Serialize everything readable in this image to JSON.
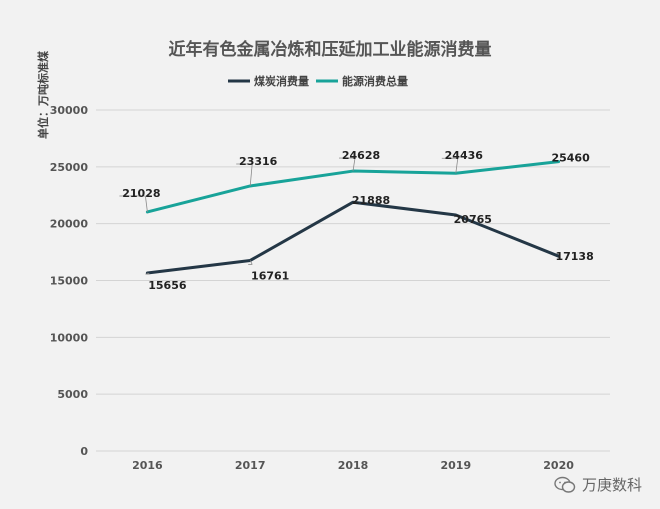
{
  "chart_data": {
    "type": "line",
    "title": "近年有色金属冶炼和压延加工业能源消费量",
    "ylabel": "单位：万吨标准煤",
    "xlabel": "",
    "categories": [
      "2016",
      "2017",
      "2018",
      "2019",
      "2020"
    ],
    "ylim": [
      0,
      30000
    ],
    "yticks": [
      0,
      5000,
      10000,
      15000,
      20000,
      25000,
      30000
    ],
    "grid": true,
    "legend_position": "top-center",
    "series": [
      {
        "name": "煤炭消费量",
        "values": [
          15656,
          16761,
          21888,
          20765,
          17138
        ],
        "color": "#243746"
      },
      {
        "name": "能源消费总量",
        "values": [
          21028,
          23316,
          24628,
          24436,
          25460
        ],
        "color": "#18a399"
      }
    ]
  },
  "watermark": {
    "text": "万庚数科",
    "icon": "wechat-icon"
  }
}
